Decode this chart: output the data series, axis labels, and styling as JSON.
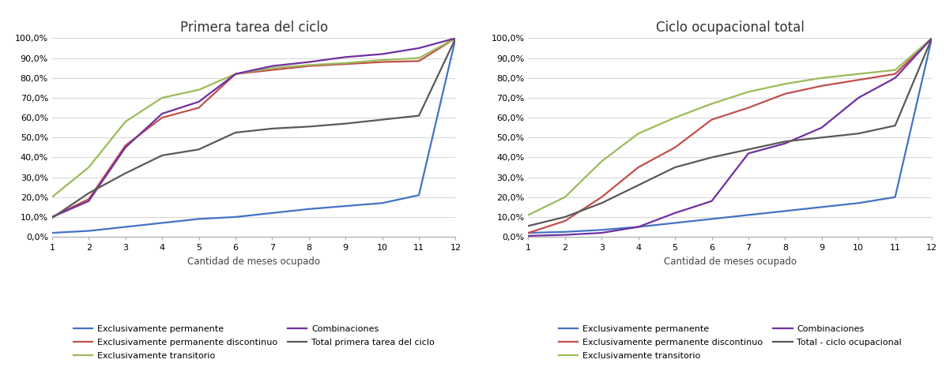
{
  "x": [
    1,
    2,
    3,
    4,
    5,
    6,
    7,
    8,
    9,
    10,
    11,
    12
  ],
  "chart1_title": "Primera tarea del ciclo",
  "chart1_series": {
    "Exclusivamente permanente": [
      2.0,
      3.0,
      5.0,
      7.0,
      9.0,
      10.0,
      12.0,
      14.0,
      15.5,
      17.0,
      21.0,
      100.0
    ],
    "Exclusivamente permanente discontinuo": [
      10.0,
      19.0,
      46.0,
      60.0,
      65.0,
      82.0,
      84.0,
      86.0,
      87.0,
      88.0,
      88.5,
      100.0
    ],
    "Exclusivamente transitorio": [
      20.0,
      35.0,
      58.0,
      70.0,
      74.0,
      82.0,
      85.0,
      86.5,
      87.5,
      89.0,
      90.0,
      100.0
    ],
    "Combinaciones": [
      10.0,
      18.0,
      45.0,
      62.0,
      68.0,
      82.0,
      86.0,
      88.0,
      90.5,
      92.0,
      95.0,
      100.0
    ],
    "Total primera tarea del ciclo": [
      9.5,
      22.0,
      32.0,
      41.0,
      44.0,
      52.5,
      54.5,
      55.5,
      57.0,
      59.0,
      61.0,
      100.0
    ]
  },
  "chart1_colors": {
    "Exclusivamente permanente": "#4472c4",
    "Exclusivamente permanente discontinuo": "#c0504d",
    "Exclusivamente transitorio": "#9bbb59",
    "Combinaciones": "#7030a0",
    "Total primera tarea del ciclo": "#595959"
  },
  "chart2_title": "Ciclo ocupacional total",
  "chart2_series": {
    "Exclusivamente permanente": [
      2.0,
      2.5,
      3.5,
      5.0,
      7.0,
      9.0,
      11.0,
      13.0,
      15.0,
      17.0,
      20.0,
      100.0
    ],
    "Exclusivamente permanente discontinuo": [
      2.0,
      8.0,
      20.0,
      35.0,
      45.0,
      59.0,
      65.0,
      72.0,
      76.0,
      79.0,
      82.0,
      100.0
    ],
    "Exclusivamente transitorio": [
      11.0,
      20.0,
      38.0,
      52.0,
      60.0,
      67.0,
      73.0,
      77.0,
      80.0,
      82.0,
      84.0,
      100.0
    ],
    "Combinaciones": [
      0.5,
      1.0,
      2.0,
      5.0,
      12.0,
      18.0,
      42.0,
      47.0,
      55.0,
      70.0,
      80.0,
      100.0
    ],
    "Total - ciclo ocupacional": [
      5.5,
      10.0,
      17.0,
      26.0,
      35.0,
      40.0,
      44.0,
      48.0,
      50.0,
      52.0,
      56.0,
      100.0
    ]
  },
  "chart2_colors": {
    "Exclusivamente permanente": "#4472c4",
    "Exclusivamente permanente discontinuo": "#c0504d",
    "Exclusivamente transitorio": "#9bbb59",
    "Combinaciones": "#7030a0",
    "Total - ciclo ocupacional": "#595959"
  },
  "xlabel": "Cantidad de meses ocupado",
  "ylim": [
    0,
    100
  ],
  "yticks": [
    0,
    10,
    20,
    30,
    40,
    50,
    60,
    70,
    80,
    90,
    100
  ],
  "ytick_labels": [
    "0,0%",
    "10,0%",
    "20,0%",
    "30,0%",
    "40,0%",
    "50,0%",
    "60,0%",
    "70,0%",
    "80,0%",
    "90,0%",
    "100,0%"
  ],
  "xticks": [
    1,
    2,
    3,
    4,
    5,
    6,
    7,
    8,
    9,
    10,
    11,
    12
  ],
  "leg1_order": [
    "Exclusivamente permanente",
    "Exclusivamente permanente discontinuo",
    "Exclusivamente transitorio",
    "Combinaciones",
    "Total primera tarea del ciclo"
  ],
  "leg2_order": [
    "Exclusivamente permanente",
    "Exclusivamente permanente discontinuo",
    "Exclusivamente transitorio",
    "Combinaciones",
    "Total - ciclo ocupacional"
  ],
  "background_color": "#ffffff",
  "plot_background": "#ffffff",
  "grid_color": "#d9d9d9",
  "line_width": 1.6,
  "title_fontsize": 12,
  "tick_fontsize": 8,
  "label_fontsize": 8.5,
  "legend_fontsize": 8
}
